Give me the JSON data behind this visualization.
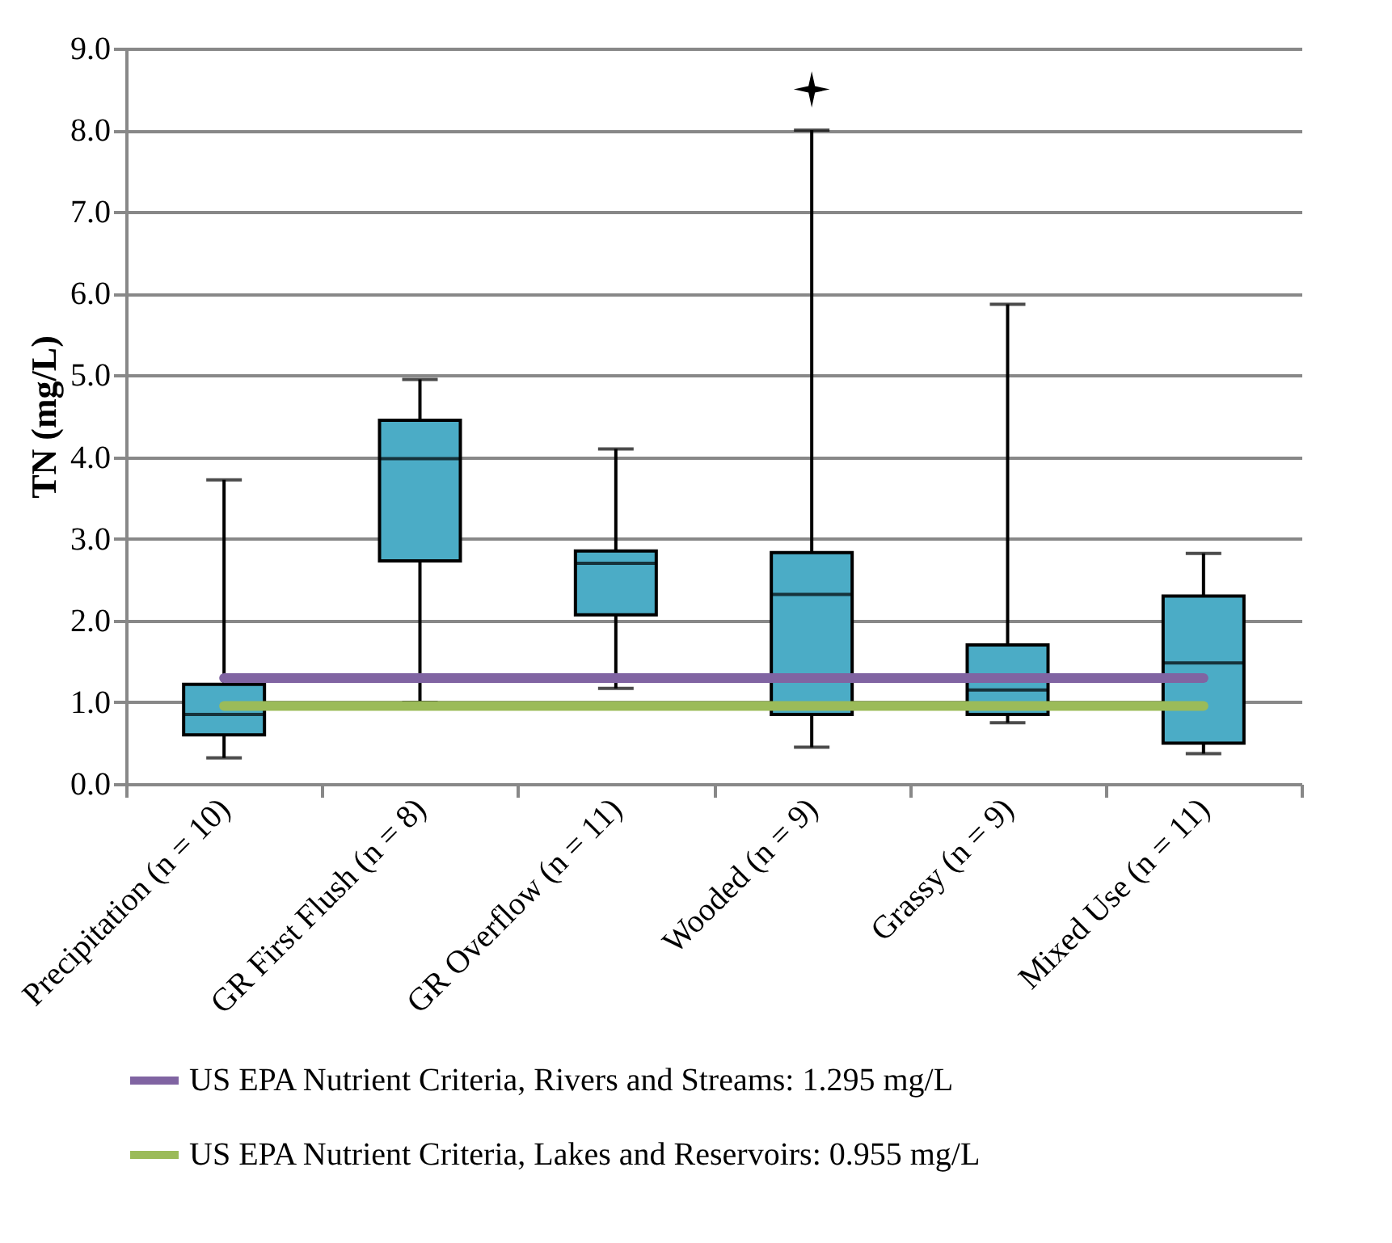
{
  "chart_data": {
    "type": "box",
    "ylabel": "TN (mg/L)",
    "categories": [
      "Precipitation (n = 10)",
      "GR First Flush (n = 8)",
      "GR Overflow (n = 11)",
      "Wooded (n = 9)",
      "Grassy (n = 9)",
      "Mixed Use (n = 11)"
    ],
    "color": "#4bacc6",
    "boxes": [
      {
        "low": 0.32,
        "q1": 0.6,
        "median": 0.85,
        "q3": 1.22,
        "high": 3.72
      },
      {
        "low": 1.0,
        "q1": 2.73,
        "median": 3.98,
        "q3": 4.45,
        "high": 4.95
      },
      {
        "low": 1.17,
        "q1": 2.07,
        "median": 2.7,
        "q3": 2.85,
        "high": 4.1
      },
      {
        "low": 0.45,
        "q1": 0.85,
        "median": 2.32,
        "q3": 2.83,
        "high": 8.0,
        "outliers": [
          8.5
        ]
      },
      {
        "low": 0.75,
        "q1": 0.85,
        "median": 1.15,
        "q3": 1.7,
        "high": 5.87
      },
      {
        "low": 0.37,
        "q1": 0.5,
        "median": 1.48,
        "q3": 2.3,
        "high": 2.82
      }
    ],
    "marker": "star",
    "ylim": [
      0,
      9
    ],
    "yticks": [
      {
        "value": 0,
        "label": "0.0"
      },
      {
        "value": 1,
        "label": "1.0"
      },
      {
        "value": 2,
        "label": "2.0"
      },
      {
        "value": 3,
        "label": "3.0"
      },
      {
        "value": 4,
        "label": "4.0"
      },
      {
        "value": 5,
        "label": "5.0"
      },
      {
        "value": 6,
        "label": "6.0"
      },
      {
        "value": 7,
        "label": "7.0"
      },
      {
        "value": 8,
        "label": "8.0"
      },
      {
        "value": 9,
        "label": "9.0"
      }
    ],
    "grid": "y",
    "legend": "bottom",
    "ref_lines": [
      {
        "axis": "y",
        "value": 1.295,
        "label": "US EPA Nutrient Criteria, Rivers and Streams: 1.295 mg/L",
        "color": "#8064a2"
      },
      {
        "axis": "y",
        "value": 0.955,
        "label": "US EPA Nutrient Criteria, Lakes and Reservoirs: 0.955 mg/L",
        "color": "#9bbb59"
      }
    ]
  }
}
